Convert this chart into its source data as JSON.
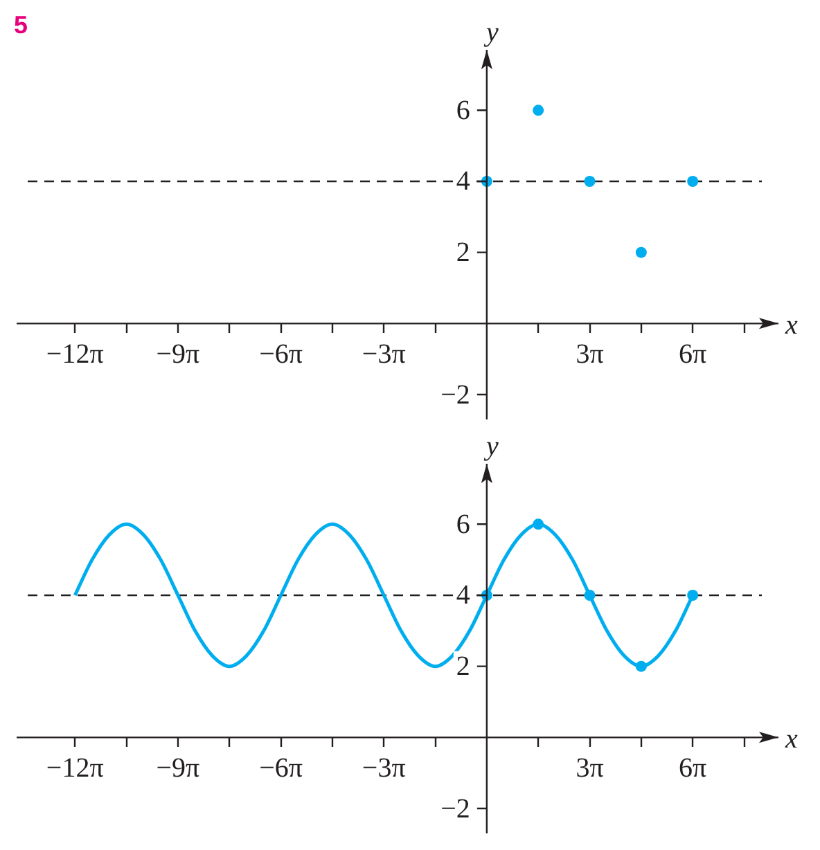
{
  "chart_data": [
    {
      "type": "scatter",
      "xlabel": "x",
      "ylabel": "y",
      "annotations": [
        "5"
      ],
      "marker": "circle",
      "xlim": [
        -43.04,
        26.7
      ],
      "ylim": [
        -2.7,
        7.7
      ],
      "xticks": [
        {
          "value": -37.699,
          "label": "−12π"
        },
        {
          "value": -32.987,
          "label": null
        },
        {
          "value": -28.274,
          "label": "−9π"
        },
        {
          "value": -23.562,
          "label": null
        },
        {
          "value": -18.85,
          "label": "−6π"
        },
        {
          "value": -14.137,
          "label": null
        },
        {
          "value": -9.425,
          "label": "−3π"
        },
        {
          "value": -4.712,
          "label": null
        },
        {
          "value": 4.712,
          "label": null
        },
        {
          "value": 9.425,
          "label": "3π"
        },
        {
          "value": 14.137,
          "label": null
        },
        {
          "value": 18.85,
          "label": "6π"
        },
        {
          "value": 23.562,
          "label": null
        }
      ],
      "yticks": [
        {
          "value": -2,
          "label": "−2"
        },
        2,
        4,
        6
      ],
      "ref_lines": [
        {
          "axis": "y",
          "value": 4,
          "color": "#231f20",
          "line_style": "dashed"
        }
      ],
      "series": [
        {
          "color": "#00aeef",
          "x": [
            0,
            4.712,
            9.425,
            14.137,
            18.85
          ],
          "values": [
            4,
            6,
            4,
            2,
            4
          ]
        }
      ]
    },
    {
      "type": "line",
      "xlabel": "x",
      "ylabel": "y",
      "marker": "circle",
      "xlim": [
        -43.04,
        26.7
      ],
      "ylim": [
        -2.7,
        7.7
      ],
      "xticks": [
        {
          "value": -37.699,
          "label": "−12π"
        },
        {
          "value": -32.987,
          "label": null
        },
        {
          "value": -28.274,
          "label": "−9π"
        },
        {
          "value": -23.562,
          "label": null
        },
        {
          "value": -18.85,
          "label": "−6π"
        },
        {
          "value": -14.137,
          "label": null
        },
        {
          "value": -9.425,
          "label": "−3π"
        },
        {
          "value": -4.712,
          "label": null
        },
        {
          "value": 4.712,
          "label": null
        },
        {
          "value": 9.425,
          "label": "3π"
        },
        {
          "value": 14.137,
          "label": null
        },
        {
          "value": 18.85,
          "label": "6π"
        },
        {
          "value": 23.562,
          "label": null
        }
      ],
      "yticks": [
        {
          "value": -2,
          "label": "−2"
        },
        2,
        4,
        6
      ],
      "ref_lines": [
        {
          "axis": "y",
          "value": 4,
          "color": "#231f20",
          "line_style": "dashed"
        }
      ],
      "series": [
        {
          "color": "#00aeef",
          "marker": "none",
          "x": [
            -37.7,
            -36.13,
            -34.56,
            -32.99,
            -31.42,
            -29.85,
            -28.27,
            -26.7,
            -25.13,
            -23.56,
            -21.99,
            -20.42,
            -18.85,
            -17.28,
            -15.71,
            -14.14,
            -12.57,
            -11.0,
            -9.42,
            -7.85,
            -6.28,
            -4.71,
            -3.14,
            -1.57,
            0,
            1.57,
            3.14,
            4.71,
            6.28,
            7.85,
            9.42,
            11.0,
            12.57,
            14.14,
            15.71,
            17.28,
            18.85
          ],
          "values": [
            4,
            5,
            5.7,
            6,
            5.7,
            5,
            4,
            3,
            2.3,
            2,
            2.3,
            3,
            4,
            5,
            5.7,
            6,
            5.7,
            5,
            4,
            3,
            2.3,
            2,
            2.3,
            3,
            4,
            5,
            5.7,
            6,
            5.7,
            5,
            4,
            3,
            2.3,
            2,
            2.3,
            3,
            4
          ]
        },
        {
          "type": "scatter",
          "color": "#00aeef",
          "x": [
            0,
            4.712,
            9.425,
            14.137,
            18.85
          ],
          "values": [
            4,
            6,
            4,
            2,
            4
          ]
        }
      ]
    }
  ]
}
